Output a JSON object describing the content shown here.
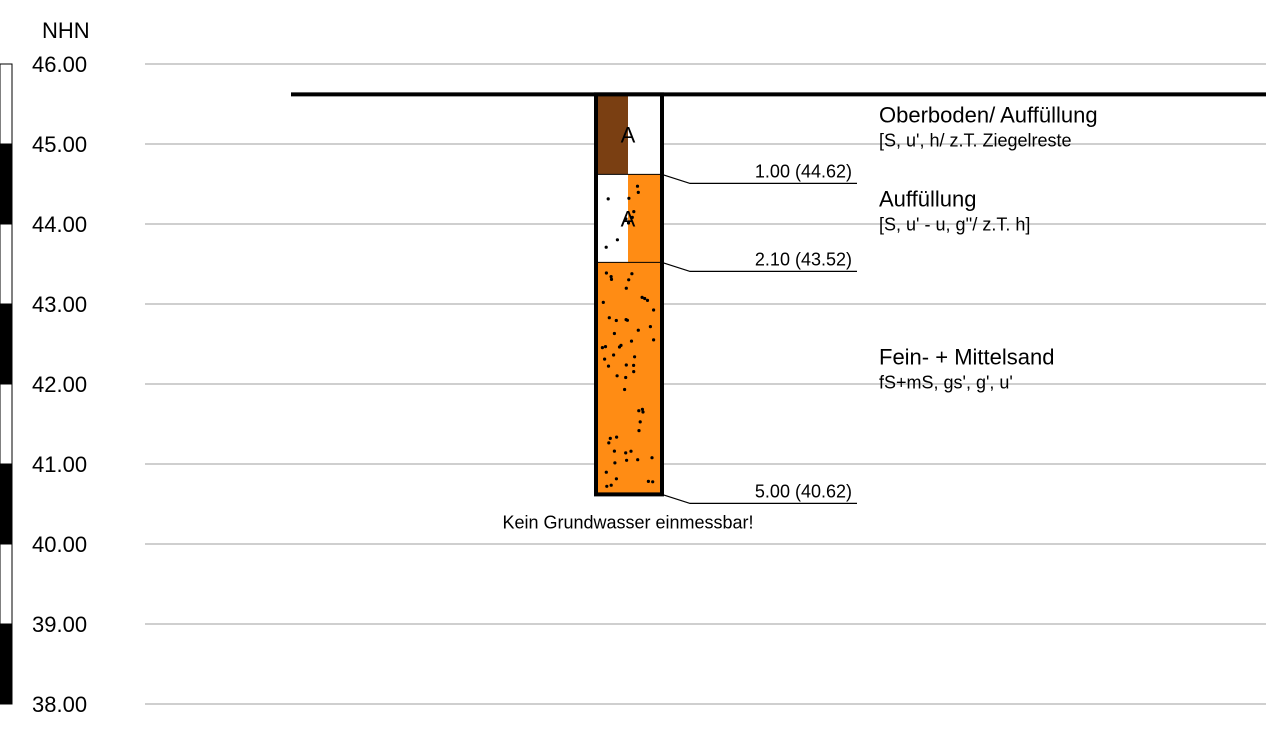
{
  "axis": {
    "unit_label": "NHN",
    "ticks": [
      46.0,
      45.0,
      44.0,
      43.0,
      42.0,
      41.0,
      40.0,
      39.0,
      38.0
    ],
    "tick_labels": [
      "46.00",
      "45.00",
      "44.00",
      "43.00",
      "42.00",
      "41.00",
      "40.00",
      "39.00",
      "38.00"
    ],
    "range": [
      38.0,
      46.0
    ]
  },
  "borehole": {
    "ground_level": 45.62,
    "note": "Kein Grundwasser einmessbar!",
    "layers": [
      {
        "top": 45.62,
        "bottom": 44.62,
        "code": "A",
        "name": "Oberboden/ Auffüllung",
        "desc": "[S, u', h/ z.T. Ziegelreste",
        "depth_label": "1.00 (44.62)",
        "color_left": "#7a3f12",
        "color_right": "#ffffff",
        "dots": "none"
      },
      {
        "top": 44.62,
        "bottom": 43.52,
        "code": "A",
        "name": "Auffüllung",
        "desc": "[S, u' - u, g''/ z.T. h]",
        "depth_label": "2.10 (43.52)",
        "color_left": "#ffffff",
        "color_right": "#ff8c14",
        "dots": "sparse"
      },
      {
        "top": 43.52,
        "bottom": 40.62,
        "code": "",
        "name": "Fein- + Mittelsand",
        "desc": "fS+mS, gs', g', u'",
        "depth_label": "5.00 (40.62)",
        "color_left": "#ff8c14",
        "color_right": "#ff8c14",
        "dots": "dense"
      }
    ]
  },
  "colors": {
    "grid": "#bfbfbf",
    "outline": "#000000"
  }
}
